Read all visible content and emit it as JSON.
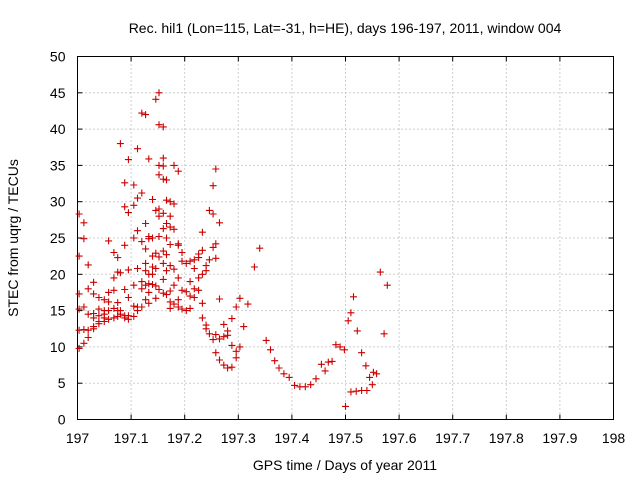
{
  "chart_data": {
    "type": "scatter",
    "title": "Rec. hil1 (Lon=115, Lat=-31, h=HE), days 196-197, 2011, window 004",
    "xlabel": "GPS time / Days of year 2011",
    "ylabel": "STEC from uqrg / TECUs",
    "xlim": [
      197,
      198
    ],
    "ylim": [
      0,
      50
    ],
    "xticks": [
      "197",
      "197.1",
      "197.2",
      "197.3",
      "197.4",
      "197.5",
      "197.6",
      "197.7",
      "197.8",
      "197.9",
      "198"
    ],
    "yticks": [
      "0",
      "5",
      "10",
      "15",
      "20",
      "25",
      "30",
      "35",
      "40",
      "45",
      "50"
    ],
    "grid": true,
    "marker": "plus",
    "color": "#cc0000",
    "points": [
      [
        197.003,
        28.3
      ],
      [
        197.003,
        22.5
      ],
      [
        197.003,
        17.3
      ],
      [
        197.003,
        15.2
      ],
      [
        197.003,
        12.3
      ],
      [
        197.003,
        9.8
      ],
      [
        197.012,
        27.1
      ],
      [
        197.012,
        24.9
      ],
      [
        197.012,
        15.5
      ],
      [
        197.012,
        12.4
      ],
      [
        197.012,
        10.5
      ],
      [
        197.02,
        21.3
      ],
      [
        197.02,
        18.0
      ],
      [
        197.02,
        14.5
      ],
      [
        197.02,
        12.3
      ],
      [
        197.02,
        11.3
      ],
      [
        197.03,
        18.9
      ],
      [
        197.03,
        17.3
      ],
      [
        197.03,
        14.6
      ],
      [
        197.03,
        14.0
      ],
      [
        197.03,
        12.8
      ],
      [
        197.03,
        12.5
      ],
      [
        197.04,
        16.8
      ],
      [
        197.04,
        15.2
      ],
      [
        197.04,
        14.3
      ],
      [
        197.04,
        13.5
      ],
      [
        197.04,
        13.2
      ],
      [
        197.05,
        16.5
      ],
      [
        197.05,
        15.0
      ],
      [
        197.05,
        14.5
      ],
      [
        197.05,
        14.0
      ],
      [
        197.05,
        13.5
      ],
      [
        197.058,
        24.6
      ],
      [
        197.058,
        17.5
      ],
      [
        197.058,
        16.2
      ],
      [
        197.058,
        15.0
      ],
      [
        197.058,
        13.8
      ],
      [
        197.068,
        23.0
      ],
      [
        197.068,
        19.5
      ],
      [
        197.068,
        17.8
      ],
      [
        197.068,
        15.3
      ],
      [
        197.068,
        14.0
      ],
      [
        197.075,
        22.3
      ],
      [
        197.075,
        20.3
      ],
      [
        197.075,
        16.1
      ],
      [
        197.075,
        15.0
      ],
      [
        197.075,
        14.2
      ],
      [
        197.08,
        38.0
      ],
      [
        197.08,
        20.2
      ],
      [
        197.08,
        15.0
      ],
      [
        197.08,
        14.5
      ],
      [
        197.088,
        32.6
      ],
      [
        197.088,
        29.3
      ],
      [
        197.088,
        24.0
      ],
      [
        197.088,
        17.9
      ],
      [
        197.088,
        14.3
      ],
      [
        197.088,
        14.0
      ],
      [
        197.095,
        35.8
      ],
      [
        197.095,
        28.5
      ],
      [
        197.095,
        20.6
      ],
      [
        197.095,
        16.8
      ],
      [
        197.095,
        14.3
      ],
      [
        197.095,
        13.8
      ],
      [
        197.105,
        32.3
      ],
      [
        197.105,
        29.5
      ],
      [
        197.105,
        25.0
      ],
      [
        197.105,
        18.5
      ],
      [
        197.105,
        15.6
      ],
      [
        197.105,
        14.2
      ],
      [
        197.112,
        37.3
      ],
      [
        197.112,
        30.5
      ],
      [
        197.112,
        26.0
      ],
      [
        197.112,
        20.8
      ],
      [
        197.112,
        15.5
      ],
      [
        197.112,
        15.0
      ],
      [
        197.12,
        42.2
      ],
      [
        197.12,
        31.2
      ],
      [
        197.12,
        24.5
      ],
      [
        197.12,
        19.0
      ],
      [
        197.12,
        18.0
      ],
      [
        197.12,
        15.5
      ],
      [
        197.127,
        42.0
      ],
      [
        197.127,
        27.0
      ],
      [
        197.127,
        23.5
      ],
      [
        197.127,
        21.5
      ],
      [
        197.127,
        20.5
      ],
      [
        197.127,
        18.5
      ],
      [
        197.127,
        16.5
      ],
      [
        197.133,
        35.9
      ],
      [
        197.133,
        25.2
      ],
      [
        197.133,
        24.9
      ],
      [
        197.133,
        20.0
      ],
      [
        197.133,
        18.7
      ],
      [
        197.133,
        17.5
      ],
      [
        197.133,
        16.0
      ],
      [
        197.14,
        30.3
      ],
      [
        197.14,
        25.0
      ],
      [
        197.14,
        22.5
      ],
      [
        197.14,
        21.0
      ],
      [
        197.14,
        20.0
      ],
      [
        197.14,
        18.6
      ],
      [
        197.146,
        44.1
      ],
      [
        197.146,
        28.8
      ],
      [
        197.146,
        22.9
      ],
      [
        197.146,
        20.8
      ],
      [
        197.146,
        18.4
      ],
      [
        197.146,
        16.7
      ],
      [
        197.152,
        45.0
      ],
      [
        197.152,
        40.6
      ],
      [
        197.152,
        35.0
      ],
      [
        197.152,
        33.7
      ],
      [
        197.152,
        29.0
      ],
      [
        197.152,
        28.0
      ],
      [
        197.152,
        25.2
      ],
      [
        197.152,
        22.4
      ],
      [
        197.152,
        17.9
      ],
      [
        197.16,
        40.3
      ],
      [
        197.16,
        36.0
      ],
      [
        197.16,
        34.9
      ],
      [
        197.16,
        33.1
      ],
      [
        197.16,
        28.4
      ],
      [
        197.16,
        26.3
      ],
      [
        197.16,
        23.2
      ],
      [
        197.16,
        21.5
      ],
      [
        197.16,
        19.3
      ],
      [
        197.16,
        17.4
      ],
      [
        197.166,
        33.0
      ],
      [
        197.166,
        30.2
      ],
      [
        197.166,
        27.0
      ],
      [
        197.166,
        25.0
      ],
      [
        197.166,
        22.7
      ],
      [
        197.166,
        20.5
      ],
      [
        197.166,
        17.2
      ],
      [
        197.173,
        30.0
      ],
      [
        197.173,
        28.0
      ],
      [
        197.173,
        26.5
      ],
      [
        197.173,
        24.1
      ],
      [
        197.173,
        21.2
      ],
      [
        197.173,
        17.7
      ],
      [
        197.173,
        16.2
      ],
      [
        197.173,
        15.3
      ],
      [
        197.18,
        35.0
      ],
      [
        197.18,
        29.7
      ],
      [
        197.18,
        26.2
      ],
      [
        197.18,
        20.7
      ],
      [
        197.18,
        18.5
      ],
      [
        197.18,
        15.9
      ],
      [
        197.188,
        34.2
      ],
      [
        197.188,
        24.2
      ],
      [
        197.188,
        24.0
      ],
      [
        197.188,
        19.5
      ],
      [
        197.188,
        16.5
      ],
      [
        197.188,
        15.5
      ],
      [
        197.195,
        23.0
      ],
      [
        197.195,
        21.8
      ],
      [
        197.195,
        17.8
      ],
      [
        197.195,
        15.2
      ],
      [
        197.203,
        21.5
      ],
      [
        197.203,
        17.6
      ],
      [
        197.203,
        15.0
      ],
      [
        197.21,
        21.8
      ],
      [
        197.21,
        19.0
      ],
      [
        197.21,
        17.0
      ],
      [
        197.21,
        15.3
      ],
      [
        197.218,
        22.0
      ],
      [
        197.218,
        20.8
      ],
      [
        197.218,
        18.0
      ],
      [
        197.218,
        16.8
      ],
      [
        197.226,
        22.8
      ],
      [
        197.226,
        22.3
      ],
      [
        197.226,
        19.5
      ],
      [
        197.226,
        17.8
      ],
      [
        197.233,
        25.8
      ],
      [
        197.233,
        23.3
      ],
      [
        197.233,
        20.0
      ],
      [
        197.233,
        16.0
      ],
      [
        197.233,
        14.0
      ],
      [
        197.24,
        21.2
      ],
      [
        197.24,
        20.5
      ],
      [
        197.24,
        13.0
      ],
      [
        197.24,
        12.5
      ],
      [
        197.246,
        28.8
      ],
      [
        197.246,
        22.0
      ],
      [
        197.246,
        11.8
      ],
      [
        197.253,
        32.2
      ],
      [
        197.253,
        28.3
      ],
      [
        197.253,
        23.7
      ],
      [
        197.253,
        11.0
      ],
      [
        197.258,
        34.5
      ],
      [
        197.258,
        24.2
      ],
      [
        197.258,
        22.2
      ],
      [
        197.258,
        11.7
      ],
      [
        197.258,
        9.2
      ],
      [
        197.265,
        27.1
      ],
      [
        197.265,
        16.6
      ],
      [
        197.265,
        11.1
      ],
      [
        197.265,
        8.2
      ],
      [
        197.273,
        13.1
      ],
      [
        197.273,
        11.4
      ],
      [
        197.273,
        7.5
      ],
      [
        197.28,
        12.2
      ],
      [
        197.28,
        11.6
      ],
      [
        197.28,
        7.1
      ],
      [
        197.288,
        13.9
      ],
      [
        197.288,
        10.2
      ],
      [
        197.288,
        7.2
      ],
      [
        197.296,
        9.4
      ],
      [
        197.296,
        8.5
      ],
      [
        197.296,
        15.5
      ],
      [
        197.303,
        10.0
      ],
      [
        197.303,
        16.7
      ],
      [
        197.31,
        12.8
      ],
      [
        197.318,
        15.9
      ],
      [
        197.33,
        21.0
      ],
      [
        197.34,
        23.6
      ],
      [
        197.352,
        10.9
      ],
      [
        197.36,
        9.6
      ],
      [
        197.368,
        8.1
      ],
      [
        197.376,
        7.1
      ],
      [
        197.385,
        6.3
      ],
      [
        197.395,
        5.8
      ],
      [
        197.405,
        4.7
      ],
      [
        197.415,
        4.5
      ],
      [
        197.425,
        4.5
      ],
      [
        197.435,
        4.8
      ],
      [
        197.445,
        5.6
      ],
      [
        197.455,
        7.6
      ],
      [
        197.462,
        6.7
      ],
      [
        197.468,
        7.9
      ],
      [
        197.475,
        8.0
      ],
      [
        197.482,
        10.3
      ],
      [
        197.49,
        10.0
      ],
      [
        197.498,
        9.6
      ],
      [
        197.505,
        13.6
      ],
      [
        197.51,
        14.7
      ],
      [
        197.515,
        16.9
      ],
      [
        197.522,
        12.2
      ],
      [
        197.53,
        9.2
      ],
      [
        197.538,
        7.4
      ],
      [
        197.545,
        5.8
      ],
      [
        197.552,
        6.5
      ],
      [
        197.558,
        6.3
      ],
      [
        197.565,
        20.3
      ],
      [
        197.572,
        11.8
      ],
      [
        197.578,
        18.5
      ],
      [
        197.5,
        1.8
      ],
      [
        197.51,
        3.8
      ],
      [
        197.52,
        3.9
      ],
      [
        197.53,
        4.0
      ],
      [
        197.54,
        4.0
      ],
      [
        197.55,
        4.8
      ]
    ]
  }
}
